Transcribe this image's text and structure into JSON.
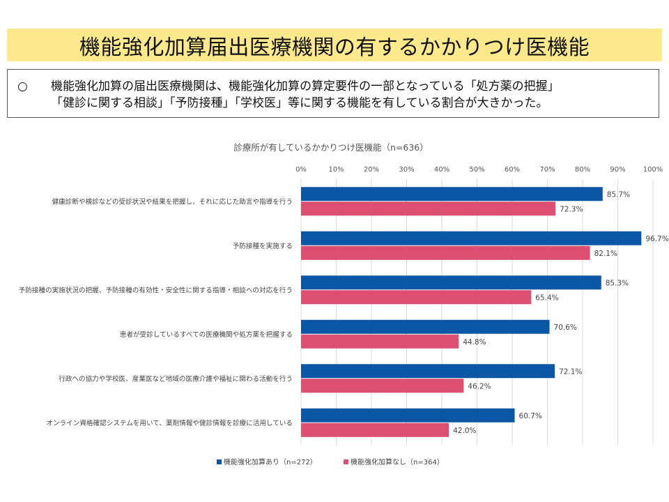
{
  "page_title": "機能強化加算届出医療機関の有するかかりつけ医機能",
  "summary": {
    "bullet": "○",
    "line1": "機能強化加算の届出医療機関は、機能強化加算の算定要件の一部となっている「処方薬の把握」",
    "line2": "「健診に関する相談」「予防接種」「学校医」等に関する機能を有している割合が大きかった。"
  },
  "chart_data": {
    "type": "bar",
    "orientation": "horizontal",
    "title": "診療所が有しているかかりつけ医機能（n=636）",
    "xlim": [
      0,
      100
    ],
    "x_ticks": [
      "0%",
      "10%",
      "20%",
      "30%",
      "40%",
      "50%",
      "60%",
      "70%",
      "80%",
      "90%",
      "100%"
    ],
    "grid": true,
    "legend_position": "bottom",
    "categories": [
      "健康診断や検診などの受診状況や結果を把握し、それに応じた助言や指導を行う",
      "予防接種を実施する",
      "予防接種の実施状況の把握、予防接種の有効性・安全性に関する指導・相談への対応を行う",
      "患者が受診しているすべての医療機関や処方薬を把握する",
      "行政への協力や学校医、産業医など地域の医療介護や福祉に関わる活動を行う",
      "オンライン資格確認システムを用いて、薬剤情報や健診情報を診療に活用している"
    ],
    "series": [
      {
        "name": "機能強化加算あり（n=272）",
        "color": "#0b57a6",
        "values": [
          85.7,
          96.7,
          85.3,
          70.6,
          72.1,
          60.7
        ],
        "labels": [
          "85.7%",
          "96.7%",
          "85.3%",
          "70.6%",
          "72.1%",
          "60.7%"
        ]
      },
      {
        "name": "機能強化加算なし（n=364）",
        "color": "#dd4f72",
        "values": [
          72.3,
          82.1,
          65.4,
          44.8,
          46.2,
          42.0
        ],
        "labels": [
          "72.3%",
          "82.1%",
          "65.4%",
          "44.8%",
          "46.2%",
          "42.0%"
        ]
      }
    ]
  }
}
